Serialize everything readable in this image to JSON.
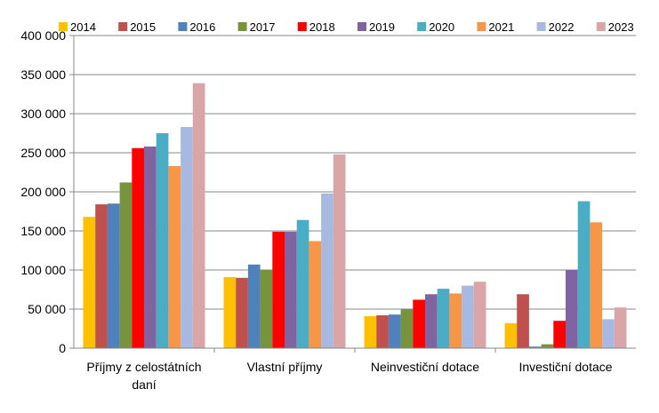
{
  "chart_data": {
    "type": "bar",
    "title": "",
    "xlabel": "",
    "ylabel": "",
    "ylim": [
      0,
      400000
    ],
    "ytick_step": 50000,
    "ytick_labels": [
      "0",
      "50 000",
      "100 000",
      "150 000",
      "200 000",
      "250 000",
      "300 000",
      "350 000",
      "400 000"
    ],
    "grid": true,
    "legend_position": "top",
    "categories": [
      [
        "Příjmy z celostátních",
        "daní"
      ],
      [
        "Vlastní příjmy"
      ],
      [
        "Neinvestiční dotace"
      ],
      [
        "Investiční dotace"
      ]
    ],
    "series": [
      {
        "name": "2014",
        "color": "#FFC000",
        "values": [
          168000,
          91000,
          41000,
          32000
        ]
      },
      {
        "name": "2015",
        "color": "#C0504D",
        "values": [
          184000,
          90000,
          42000,
          69000
        ]
      },
      {
        "name": "2016",
        "color": "#4F81BD",
        "values": [
          185000,
          107000,
          43000,
          2000
        ]
      },
      {
        "name": "2017",
        "color": "#77933C",
        "values": [
          212000,
          100000,
          50000,
          5000
        ]
      },
      {
        "name": "2018",
        "color": "#FF0000",
        "values": [
          256000,
          149000,
          62000,
          35000
        ]
      },
      {
        "name": "2019",
        "color": "#8064A2",
        "values": [
          258000,
          149000,
          69000,
          100000
        ]
      },
      {
        "name": "2020",
        "color": "#4BACC6",
        "values": [
          275000,
          164000,
          76000,
          188000
        ]
      },
      {
        "name": "2021",
        "color": "#F79646",
        "values": [
          233000,
          137000,
          70000,
          161000
        ]
      },
      {
        "name": "2022",
        "color": "#A7B9E0",
        "values": [
          283000,
          198000,
          80000,
          37000
        ]
      },
      {
        "name": "2023",
        "color": "#D9A5A6",
        "values": [
          339000,
          248000,
          85000,
          52000
        ]
      }
    ]
  }
}
